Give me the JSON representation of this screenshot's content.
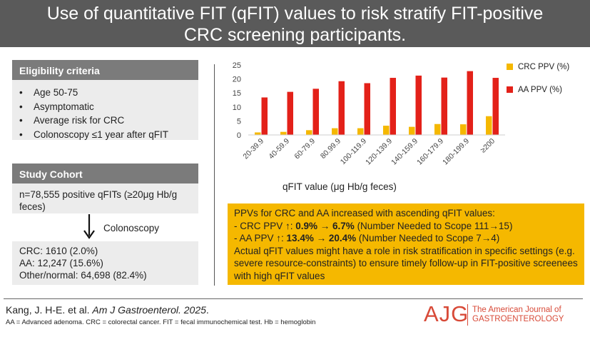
{
  "title": {
    "line1": "Use of quantitative FIT (qFIT) values to risk stratify FIT-positive",
    "line2": "CRC screening participants."
  },
  "eligibility": {
    "heading": "Eligibility criteria",
    "items": [
      "Age 50-75",
      "Asymptomatic",
      "Average risk for CRC",
      "Colonoscopy ≤1 year after qFIT"
    ]
  },
  "cohort": {
    "heading": "Study Cohort",
    "description": "n=78,555 positive qFITs (≥20μg Hb/g feces)",
    "arrow_label": "Colonoscopy",
    "outcomes": [
      "CRC: 1610 (2.0%)",
      "AA: 12,247 (15.6%)",
      "Other/normal: 64,698 (82.4%)"
    ]
  },
  "colors": {
    "crc": "#f5b800",
    "aa": "#e32119",
    "title_bg": "#5a5a5a",
    "panel_head": "#7b7b7b",
    "panel_body": "#ececec",
    "summary_bg": "#f5b800",
    "logo": "#d84a38"
  },
  "chart_data": {
    "type": "bar",
    "categories": [
      "20-39.9",
      "40-59.9",
      "60-79.9",
      "80.99.9",
      "100-119.9",
      "120-139.9",
      "140-159.9",
      "160-179.9",
      "180-199.9",
      "≥200"
    ],
    "series": [
      {
        "name": "CRC PPV (%)",
        "values": [
          0.9,
          1.1,
          1.7,
          2.4,
          2.4,
          3.3,
          2.9,
          3.9,
          3.8,
          6.7
        ]
      },
      {
        "name": "AA PPV (%)",
        "values": [
          13.4,
          15.4,
          16.5,
          19.2,
          18.5,
          20.4,
          21.2,
          20.5,
          22.8,
          20.4
        ]
      }
    ],
    "ylim": [
      0,
      25
    ],
    "yticks": [
      0,
      5,
      10,
      15,
      20,
      25
    ],
    "xlabel": "qFIT value (μg Hb/g feces)",
    "ylabel": "",
    "grid": false,
    "legend": "right"
  },
  "summary": {
    "line1": "PPVs for CRC and AA increased with ascending qFIT values:",
    "crc_prefix": "- CRC PPV ↑: ",
    "crc_values": "0.9% → 6.7%",
    "crc_suffix": " (Number Needed to Scope 111→15)",
    "aa_prefix": "- AA PPV ↑: ",
    "aa_values": "13.4% → 20.4%",
    "aa_suffix": " (Number Needed to Scope 7→4)",
    "conclusion": "Actual qFIT values might have a role in risk stratification in specific settings (e.g. severe resource-constraints) to ensure timely follow-up in FIT-positive screenees with high qFIT values"
  },
  "citation": {
    "authors": "Kang, J. H-E. et al. ",
    "journal": "Am J Gastroenterol. 2025",
    "end": ".",
    "abbreviations": "AA = Advanced adenoma. CRC = colorectal cancer. FIT = fecal immunochemical test. Hb = hemoglobin"
  },
  "logo": {
    "mark": "AJG",
    "line1": "The American Journal of",
    "line2": "GASTROENTEROLOGY"
  }
}
